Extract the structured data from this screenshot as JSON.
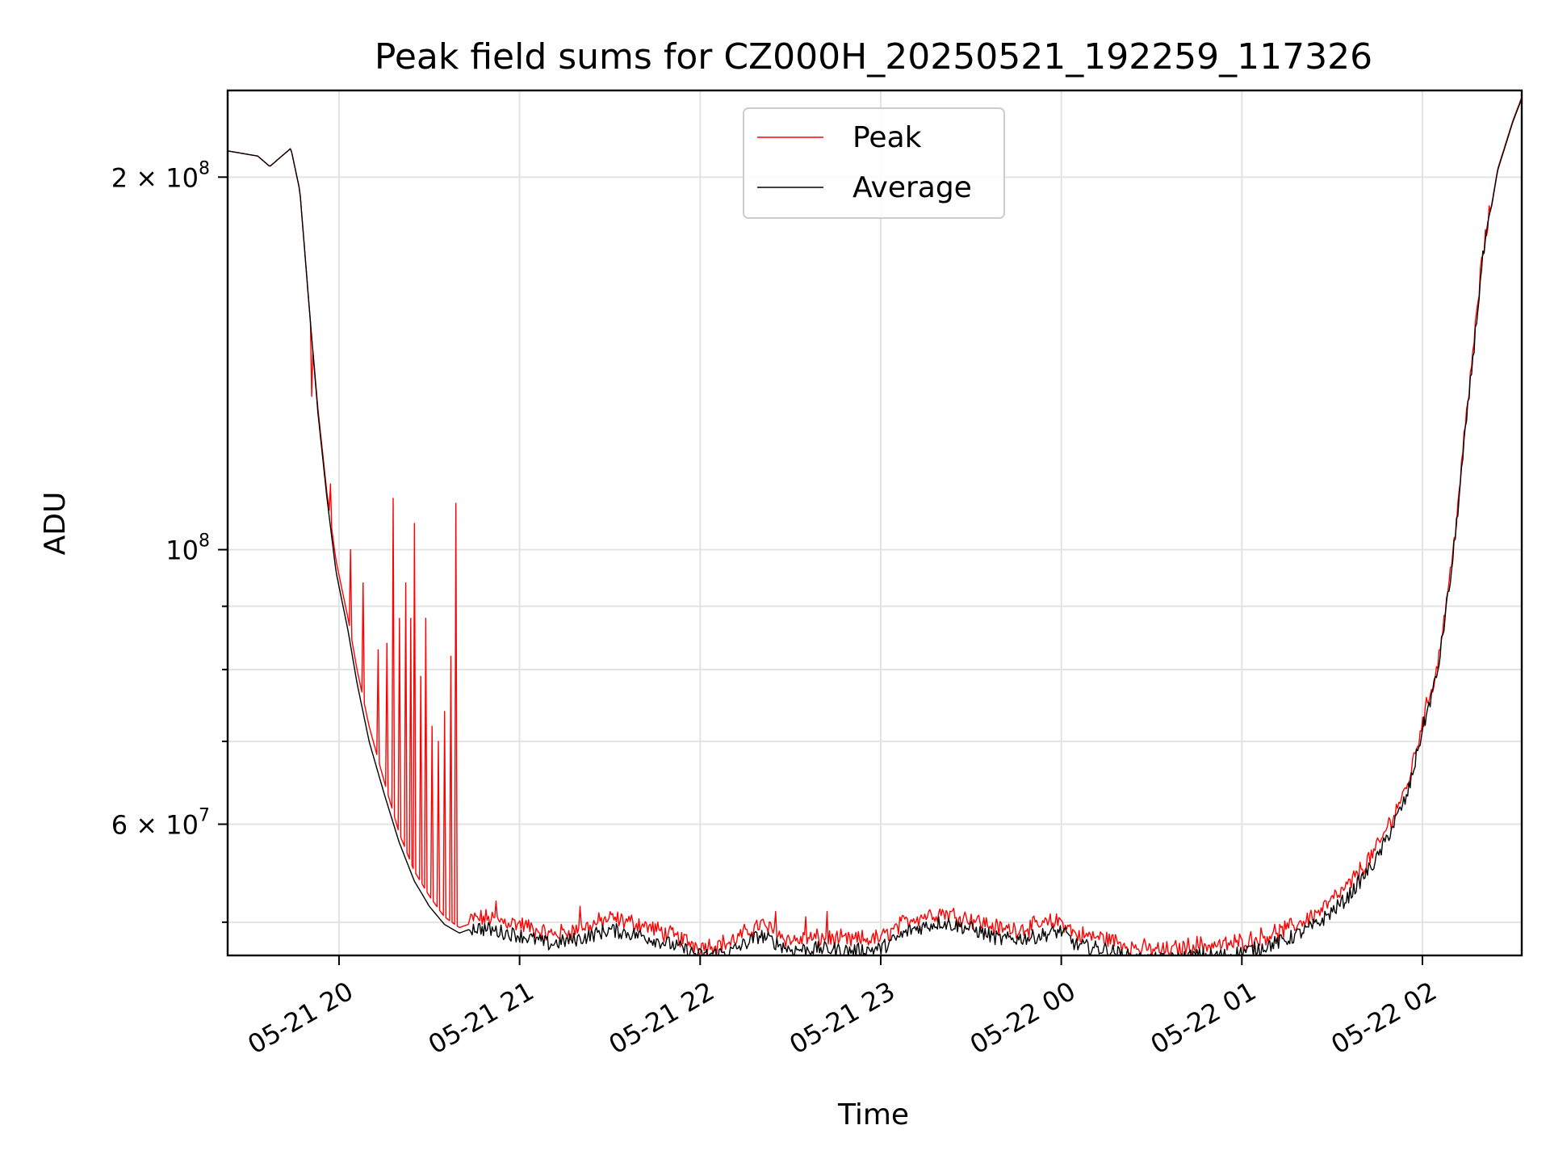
{
  "chart_data": {
    "type": "line",
    "title": "Peak field sums for CZ000H_20250521_192259_117326",
    "xlabel": "Time",
    "ylabel": "ADU",
    "yscale": "log",
    "ylim": [
      47000000,
      235000000
    ],
    "xlim": [
      "2025-05-21T19:23:00",
      "2025-05-22T02:33:00"
    ],
    "grid": true,
    "legend_position": "upper center",
    "x_ticks": [
      {
        "t": "2025-05-21T20:00:00",
        "label": "05-21 20"
      },
      {
        "t": "2025-05-21T21:00:00",
        "label": "05-21 21"
      },
      {
        "t": "2025-05-21T22:00:00",
        "label": "05-21 22"
      },
      {
        "t": "2025-05-21T23:00:00",
        "label": "05-21 23"
      },
      {
        "t": "2025-05-22T00:00:00",
        "label": "05-22 00"
      },
      {
        "t": "2025-05-22T01:00:00",
        "label": "05-22 01"
      },
      {
        "t": "2025-05-22T02:00:00",
        "label": "05-22 02"
      }
    ],
    "y_ticks": [
      {
        "value": 200000000,
        "base": "2 × 10",
        "exp": "8"
      },
      {
        "value": 100000000,
        "base": "10",
        "exp": "8"
      },
      {
        "value": 60000000,
        "base": "6 × 10",
        "exp": "7"
      }
    ],
    "y_minor_ticks": [
      50000000,
      70000000,
      80000000,
      90000000
    ],
    "series": [
      {
        "name": "Peak",
        "color": "#ff0000",
        "x": [
          "2025-05-21T19:23:00",
          "2025-05-21T19:28:00",
          "2025-05-21T19:33:00",
          "2025-05-21T19:37:00",
          "2025-05-21T19:40:00",
          "2025-05-21T19:44:00",
          "2025-05-21T19:47:00",
          "2025-05-21T19:50:00",
          "2025-05-21T19:53:00",
          "2025-05-21T19:56:00",
          "2025-05-21T19:59:00",
          "2025-05-21T20:03:00",
          "2025-05-21T20:06:00",
          "2025-05-21T20:10:00",
          "2025-05-21T20:15:00",
          "2025-05-21T20:20:00",
          "2025-05-21T20:25:00",
          "2025-05-21T20:30:00",
          "2025-05-21T20:35:00",
          "2025-05-21T20:40:00",
          "2025-05-21T20:45:00",
          "2025-05-21T20:50:00",
          "2025-05-21T21:00:00",
          "2025-05-21T21:10:00",
          "2025-05-21T21:20:00",
          "2025-05-21T21:30:00",
          "2025-05-21T21:40:00",
          "2025-05-21T21:50:00",
          "2025-05-21T22:00:00",
          "2025-05-21T22:10:00",
          "2025-05-21T22:20:00",
          "2025-05-21T22:30:00",
          "2025-05-21T22:40:00",
          "2025-05-21T22:50:00",
          "2025-05-21T23:00:00",
          "2025-05-21T23:10:00",
          "2025-05-21T23:20:00",
          "2025-05-21T23:30:00",
          "2025-05-21T23:40:00",
          "2025-05-21T23:50:00",
          "2025-05-22T00:00:00",
          "2025-05-22T00:05:00",
          "2025-05-22T00:15:00",
          "2025-05-22T00:25:00",
          "2025-05-22T00:35:00",
          "2025-05-22T00:45:00",
          "2025-05-22T00:55:00",
          "2025-05-22T01:05:00",
          "2025-05-22T01:15:00",
          "2025-05-22T01:25:00",
          "2025-05-22T01:35:00",
          "2025-05-22T01:45:00",
          "2025-05-22T01:55:00",
          "2025-05-22T02:00:00",
          "2025-05-22T02:05:00",
          "2025-05-22T02:10:00",
          "2025-05-22T02:15:00",
          "2025-05-22T02:20:00",
          "2025-05-22T02:25:00",
          "2025-05-22T02:30:00",
          "2025-05-22T02:33:00"
        ],
        "y": [
          210000000,
          209000000,
          208000000,
          204000000,
          207000000,
          211000000,
          195000000,
          158000000,
          130000000,
          111000000,
          98000000,
          88000000,
          80000000,
          72000000,
          65000000,
          59000000,
          55000000,
          52500000,
          50500000,
          49500000,
          50000000,
          50000000,
          49500000,
          48500000,
          49000000,
          50000000,
          49500000,
          48500000,
          47500000,
          47800000,
          49500000,
          48000000,
          48200000,
          48000000,
          48200000,
          50000000,
          50600000,
          50000000,
          49000000,
          49200000,
          49800000,
          48500000,
          48200000,
          47300000,
          47100000,
          47600000,
          47600000,
          48200000,
          49000000,
          50500000,
          53000000,
          57000000,
          64000000,
          72000000,
          80000000,
          98000000,
          130000000,
          172000000,
          203000000,
          222000000,
          232000000
        ]
      },
      {
        "name": "Average",
        "color": "#000000",
        "x": [
          "2025-05-21T19:23:00",
          "2025-05-21T19:28:00",
          "2025-05-21T19:33:00",
          "2025-05-21T19:37:00",
          "2025-05-21T19:40:00",
          "2025-05-21T19:44:00",
          "2025-05-21T19:47:00",
          "2025-05-21T19:50:00",
          "2025-05-21T19:53:00",
          "2025-05-21T19:56:00",
          "2025-05-21T19:59:00",
          "2025-05-21T20:03:00",
          "2025-05-21T20:06:00",
          "2025-05-21T20:10:00",
          "2025-05-21T20:15:00",
          "2025-05-21T20:20:00",
          "2025-05-21T20:25:00",
          "2025-05-21T20:30:00",
          "2025-05-21T20:35:00",
          "2025-05-21T20:40:00",
          "2025-05-21T20:45:00",
          "2025-05-21T20:50:00",
          "2025-05-21T21:00:00",
          "2025-05-21T21:10:00",
          "2025-05-21T21:20:00",
          "2025-05-21T21:30:00",
          "2025-05-21T21:40:00",
          "2025-05-21T21:50:00",
          "2025-05-21T22:00:00",
          "2025-05-21T22:10:00",
          "2025-05-21T22:20:00",
          "2025-05-21T22:30:00",
          "2025-05-21T22:40:00",
          "2025-05-21T22:50:00",
          "2025-05-21T23:00:00",
          "2025-05-21T23:10:00",
          "2025-05-21T23:20:00",
          "2025-05-21T23:30:00",
          "2025-05-21T23:40:00",
          "2025-05-21T23:50:00",
          "2025-05-22T00:00:00",
          "2025-05-22T00:05:00",
          "2025-05-22T00:15:00",
          "2025-05-22T00:25:00",
          "2025-05-22T00:35:00",
          "2025-05-22T00:45:00",
          "2025-05-22T00:55:00",
          "2025-05-22T01:05:00",
          "2025-05-22T01:15:00",
          "2025-05-22T01:25:00",
          "2025-05-22T01:35:00",
          "2025-05-22T01:45:00",
          "2025-05-22T01:55:00",
          "2025-05-22T02:00:00",
          "2025-05-22T02:05:00",
          "2025-05-22T02:10:00",
          "2025-05-22T02:15:00",
          "2025-05-22T02:20:00",
          "2025-05-22T02:25:00",
          "2025-05-22T02:30:00",
          "2025-05-22T02:33:00"
        ],
        "y": [
          210000000,
          209000000,
          208000000,
          204000000,
          207000000,
          211000000,
          195000000,
          158000000,
          129000000,
          110000000,
          96000000,
          86000000,
          78000000,
          70000000,
          63500000,
          58000000,
          54000000,
          51500000,
          49800000,
          49000000,
          49500000,
          49300000,
          48800000,
          48000000,
          48500000,
          49300000,
          48800000,
          48000000,
          47000000,
          47300000,
          48800000,
          47500000,
          47600000,
          47400000,
          47600000,
          49300000,
          50000000,
          49400000,
          48400000,
          48600000,
          49200000,
          47900000,
          47500000,
          46700000,
          46600000,
          47000000,
          47000000,
          47600000,
          48400000,
          49800000,
          52300000,
          56300000,
          63300000,
          71500000,
          79500000,
          97500000,
          129500000,
          171500000,
          202500000,
          221500000,
          231500000
        ]
      }
    ],
    "peak_spikes": [
      {
        "t": "2025-05-21T19:51:00",
        "y": 133000000
      },
      {
        "t": "2025-05-21T19:57:00",
        "y": 113000000
      },
      {
        "t": "2025-05-21T20:04:00",
        "y": 100000000
      },
      {
        "t": "2025-05-21T20:08:00",
        "y": 94000000
      },
      {
        "t": "2025-05-21T20:13:00",
        "y": 83000000
      },
      {
        "t": "2025-05-21T20:16:00",
        "y": 84000000
      },
      {
        "t": "2025-05-21T20:18:00",
        "y": 110000000
      },
      {
        "t": "2025-05-21T20:20:00",
        "y": 88000000
      },
      {
        "t": "2025-05-21T20:22:00",
        "y": 94000000
      },
      {
        "t": "2025-05-21T20:24:00",
        "y": 88000000
      },
      {
        "t": "2025-05-21T20:25:00",
        "y": 105000000
      },
      {
        "t": "2025-05-21T20:27:00",
        "y": 79000000
      },
      {
        "t": "2025-05-21T20:29:00",
        "y": 88000000
      },
      {
        "t": "2025-05-21T20:31:00",
        "y": 72000000
      },
      {
        "t": "2025-05-21T20:33:00",
        "y": 70000000
      },
      {
        "t": "2025-05-21T20:35:00",
        "y": 74000000
      },
      {
        "t": "2025-05-21T20:37:00",
        "y": 82000000
      },
      {
        "t": "2025-05-21T20:39:00",
        "y": 109000000
      },
      {
        "t": "2025-05-21T20:52:00",
        "y": 52000000
      },
      {
        "t": "2025-05-21T21:20:00",
        "y": 51500000
      },
      {
        "t": "2025-05-21T22:25:00",
        "y": 51000000
      },
      {
        "t": "2025-05-21T22:35:00",
        "y": 50500000
      },
      {
        "t": "2025-05-21T22:42:00",
        "y": 51000000
      }
    ]
  }
}
